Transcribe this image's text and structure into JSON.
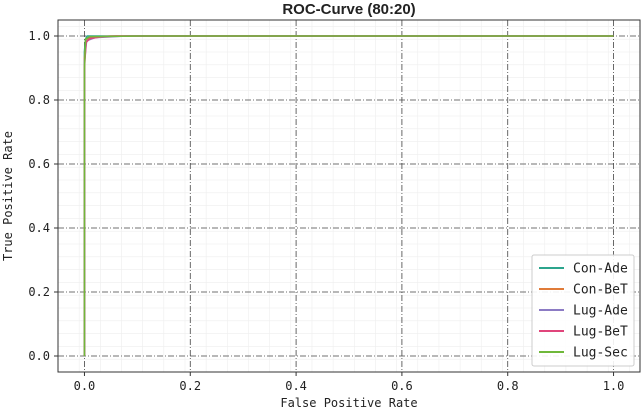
{
  "chart_data": {
    "type": "line",
    "title": "ROC-Curve (80:20)",
    "xlabel": "False Positive Rate",
    "ylabel": "True Positive Rate",
    "xlim": [
      0.0,
      1.0
    ],
    "ylim": [
      0.0,
      1.0
    ],
    "x_ticks": [
      "0.0",
      "0.2",
      "0.4",
      "0.6",
      "0.8",
      "1.0"
    ],
    "y_ticks": [
      "0.0",
      "0.2",
      "0.4",
      "0.6",
      "0.8",
      "1.0"
    ],
    "grid": true,
    "legend_position": "bottom-right",
    "series": [
      {
        "name": "Con-Ade",
        "color": "#2ca58d",
        "x": [
          0.0,
          0.0,
          0.002,
          0.005,
          0.02,
          1.0
        ],
        "y": [
          0.0,
          0.95,
          0.99,
          1.0,
          1.0,
          1.0
        ]
      },
      {
        "name": "Con-BeT",
        "color": "#e07b39",
        "x": [
          0.0,
          0.0,
          0.003,
          0.01,
          0.05,
          1.0
        ],
        "y": [
          0.0,
          0.93,
          0.985,
          0.995,
          1.0,
          1.0
        ]
      },
      {
        "name": "Lug-Ade",
        "color": "#8c7bc4",
        "x": [
          0.0,
          0.0,
          0.004,
          0.02,
          0.08,
          1.0
        ],
        "y": [
          0.0,
          0.92,
          0.985,
          0.995,
          1.0,
          1.0
        ]
      },
      {
        "name": "Lug-BeT",
        "color": "#e0457b",
        "x": [
          0.0,
          0.0,
          0.003,
          0.01,
          0.03,
          0.06,
          1.0
        ],
        "y": [
          0.0,
          0.9,
          0.98,
          0.992,
          0.997,
          1.0,
          1.0
        ]
      },
      {
        "name": "Lug-Sec",
        "color": "#6fb83a",
        "x": [
          0.0,
          0.0,
          0.002,
          0.01,
          0.1,
          1.0
        ],
        "y": [
          0.0,
          0.9,
          0.99,
          0.998,
          1.0,
          1.0
        ]
      }
    ]
  }
}
